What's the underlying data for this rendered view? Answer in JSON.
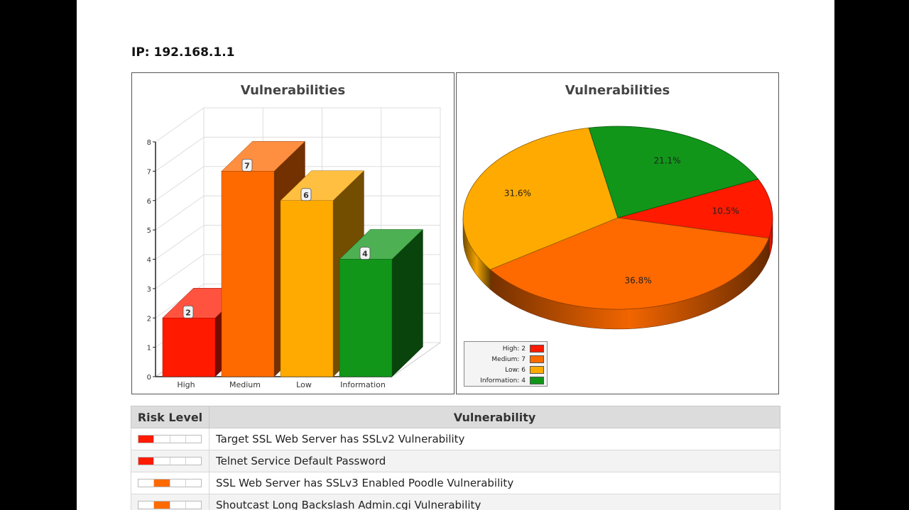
{
  "ip_heading": "IP: 192.168.1.1",
  "colors": {
    "high": "#ff1a00",
    "medium": "#ff6a00",
    "low": "#ffaa00",
    "information": "#11961a"
  },
  "bar_chart": {
    "title": "Vulnerabilities"
  },
  "pie_chart": {
    "title": "Vulnerabilities",
    "legend": [
      {
        "label": "High: 2",
        "level": "high"
      },
      {
        "label": "Medium: 7",
        "level": "medium"
      },
      {
        "label": "Low: 6",
        "level": "low"
      },
      {
        "label": "Information: 4",
        "level": "information"
      }
    ]
  },
  "chart_data": [
    {
      "type": "bar",
      "title": "Vulnerabilities",
      "categories": [
        "High",
        "Medium",
        "Low",
        "Information"
      ],
      "values": [
        2,
        7,
        6,
        4
      ],
      "data_labels": [
        "2",
        "7",
        "6",
        "4"
      ],
      "y_ticks": [
        "0",
        "1",
        "2",
        "3",
        "4",
        "5",
        "6",
        "7",
        "8"
      ],
      "ylim": [
        0,
        8
      ],
      "grid": true,
      "style": "3d"
    },
    {
      "type": "pie",
      "title": "Vulnerabilities",
      "slices": [
        {
          "label": "High",
          "value": 2,
          "percent_label": "10.5%",
          "level": "high"
        },
        {
          "label": "Medium",
          "value": 7,
          "percent_label": "36.8%",
          "level": "medium"
        },
        {
          "label": "Low",
          "value": 6,
          "percent_label": "31.6%",
          "level": "low"
        },
        {
          "label": "Information",
          "value": 4,
          "percent_label": "21.1%",
          "level": "information"
        }
      ],
      "legend_position": "bottom-left",
      "style": "3d"
    }
  ],
  "table": {
    "headers": {
      "risk_level": "Risk Level",
      "vulnerability": "Vulnerability"
    },
    "rows": [
      {
        "risk_segment": 1,
        "level": "high",
        "vulnerability": "Target SSL Web Server has SSLv2 Vulnerability"
      },
      {
        "risk_segment": 1,
        "level": "high",
        "vulnerability": "Telnet Service Default Password"
      },
      {
        "risk_segment": 2,
        "level": "medium",
        "vulnerability": "SSL Web Server has SSLv3 Enabled Poodle Vulnerability"
      },
      {
        "risk_segment": 2,
        "level": "medium",
        "vulnerability": "Shoutcast Long Backslash Admin.cgi Vulnerability"
      }
    ]
  }
}
